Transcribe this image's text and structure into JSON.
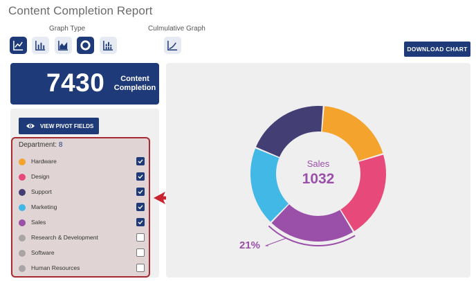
{
  "page": {
    "title": "Content Completion Report"
  },
  "toolbar": {
    "graph_type_label": "Graph Type",
    "cumulative_label": "Culmulative Graph",
    "graph_types": [
      {
        "icon": "line-chart-icon",
        "active": true
      },
      {
        "icon": "bar-chart-icon",
        "active": false
      },
      {
        "icon": "area-chart-icon",
        "active": false
      },
      {
        "icon": "donut-chart-icon",
        "active": true
      },
      {
        "icon": "stacked-bar-chart-icon",
        "active": false
      }
    ],
    "cumulative_icon": "cumulative-line-icon",
    "download_label": "DOWNLOAD CHART"
  },
  "kpi": {
    "value": "7430",
    "label_line1": "Content",
    "label_line2": "Completion"
  },
  "filters": {
    "pivot_label": "VIEW PIVOT FIELDS",
    "department_label": "Department:",
    "department_count": "8",
    "departments": [
      {
        "label": "Hardware",
        "color": "#f4a32c",
        "checked": true
      },
      {
        "label": "Design",
        "color": "#e6497a",
        "checked": true
      },
      {
        "label": "Support",
        "color": "#433f75",
        "checked": true
      },
      {
        "label": "Marketing",
        "color": "#42b8e6",
        "checked": true
      },
      {
        "label": "Sales",
        "color": "#9a4fa8",
        "checked": true
      },
      {
        "label": "Research & Development",
        "color": "#a9a4a6",
        "checked": false
      },
      {
        "label": "Software",
        "color": "#a9a4a6",
        "checked": false
      },
      {
        "label": "Human Resources",
        "color": "#a9a4a6",
        "checked": false
      }
    ]
  },
  "colors": {
    "brand": "#1e3a78",
    "highlight_border": "#a72a33",
    "arrow": "#c9232f"
  },
  "chart_data": {
    "type": "pie",
    "variant": "donut",
    "center_label": "Sales",
    "center_value": "1032",
    "callout": "21%",
    "selected_slice": "Sales",
    "slices": [
      {
        "label": "Hardware",
        "fraction": 0.19,
        "color": "#f4a32c"
      },
      {
        "label": "Design",
        "fraction": 0.21,
        "color": "#e6497a"
      },
      {
        "label": "Sales",
        "fraction": 0.21,
        "color": "#9a4fa8"
      },
      {
        "label": "Marketing",
        "fraction": 0.19,
        "color": "#42b8e6"
      },
      {
        "label": "Support",
        "fraction": 0.2,
        "color": "#433f75"
      }
    ]
  }
}
